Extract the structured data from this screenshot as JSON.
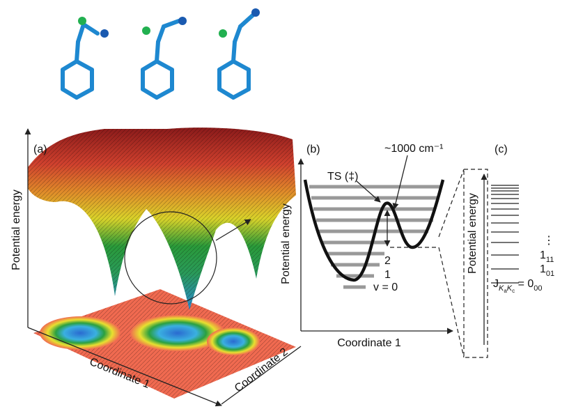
{
  "panel_a": {
    "label": "(a)",
    "y_axis": "Potential energy",
    "x_axis": "Coordinate 1",
    "z_axis": "Coordinate 2"
  },
  "panel_b": {
    "label": "(b)",
    "ts": "TS (‡)",
    "barrier": "~1000 cm⁻¹",
    "y_axis": "Potential energy",
    "x_axis": "Coordinate 1",
    "levels": [
      "2",
      "1",
      "v = 0"
    ]
  },
  "panel_c": {
    "label": "(c)",
    "y_axis": "Potential energy",
    "dots": "⋮",
    "states": [
      {
        "main": "1",
        "sub": "11"
      },
      {
        "main": "1",
        "sub": "01"
      }
    ],
    "ground": {
      "prefix": "J",
      "sub1": "K",
      "sub1a": "a",
      "sub2": "K",
      "sub2a": "c",
      "eq": " = 0",
      "sub": "00"
    }
  }
}
